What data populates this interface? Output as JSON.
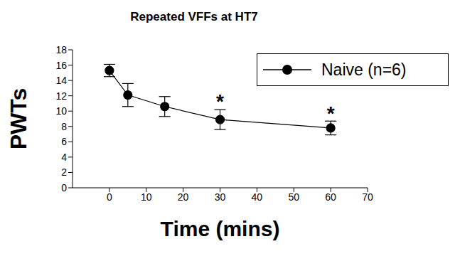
{
  "chart_data": {
    "type": "line",
    "title": "Repeated VFFs at HT7",
    "x_label": "Time (mins)",
    "y_label": "PWTs",
    "x": [
      0,
      5,
      15,
      30,
      60
    ],
    "series": [
      {
        "name": "Naive (n=6)",
        "color": "#000000",
        "values": [
          15.3,
          12.1,
          10.6,
          8.9,
          7.8
        ],
        "errors": [
          0.8,
          1.5,
          1.3,
          1.3,
          0.9
        ],
        "marker": "circle",
        "line_style": "solid"
      }
    ],
    "xlim": [
      -10,
      70
    ],
    "xticks": [
      0,
      10,
      20,
      30,
      40,
      50,
      60,
      70
    ],
    "ylim": [
      0,
      18
    ],
    "yticks": [
      0,
      2,
      4,
      6,
      8,
      10,
      12,
      14,
      16,
      18
    ],
    "grid": false,
    "legend": "upper right",
    "annotations": [
      {
        "text": "*",
        "x": 30,
        "y": 11.3
      },
      {
        "text": "*",
        "x": 60,
        "y": 9.7
      }
    ]
  }
}
